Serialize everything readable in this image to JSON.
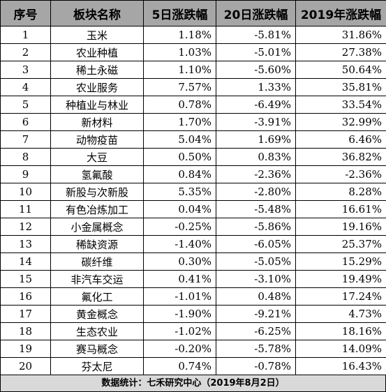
{
  "table": {
    "headers": [
      "序号",
      "板块名称",
      "5日涨跌幅",
      "20日涨跌幅",
      "2019年涨跌幅"
    ],
    "rows": [
      [
        "1",
        "玉米",
        "1.18%",
        "-5.81%",
        "31.86%"
      ],
      [
        "2",
        "农业种植",
        "1.03%",
        "-5.01%",
        "27.38%"
      ],
      [
        "3",
        "稀土永磁",
        "1.10%",
        "-5.60%",
        "50.64%"
      ],
      [
        "4",
        "农业服务",
        "7.57%",
        "1.33%",
        "35.81%"
      ],
      [
        "5",
        "种植业与林业",
        "0.78%",
        "-6.49%",
        "33.54%"
      ],
      [
        "6",
        "新材料",
        "1.70%",
        "-3.91%",
        "32.99%"
      ],
      [
        "7",
        "动物疫苗",
        "5.04%",
        "1.69%",
        "6.46%"
      ],
      [
        "8",
        "大豆",
        "0.50%",
        "0.83%",
        "36.82%"
      ],
      [
        "9",
        "氢氟酸",
        "0.84%",
        "-2.36%",
        "-2.36%"
      ],
      [
        "10",
        "新股与次新股",
        "5.35%",
        "-2.80%",
        "8.28%"
      ],
      [
        "11",
        "有色冶炼加工",
        "0.04%",
        "-5.48%",
        "16.61%"
      ],
      [
        "12",
        "小金属概念",
        "-0.25%",
        "-5.86%",
        "19.16%"
      ],
      [
        "13",
        "稀缺资源",
        "-1.40%",
        "-6.05%",
        "25.37%"
      ],
      [
        "14",
        "碳纤维",
        "0.30%",
        "-5.05%",
        "15.29%"
      ],
      [
        "15",
        "非汽车交运",
        "0.41%",
        "-3.10%",
        "19.49%"
      ],
      [
        "16",
        "氟化工",
        "-1.01%",
        "0.48%",
        "17.24%"
      ],
      [
        "17",
        "黄金概念",
        "-1.90%",
        "-9.21%",
        "4.73%"
      ],
      [
        "18",
        "生态农业",
        "-1.02%",
        "-6.25%",
        "18.16%"
      ],
      [
        "19",
        "赛马概念",
        "-0.20%",
        "-5.78%",
        "14.09%"
      ],
      [
        "20",
        "芬太尼",
        "0.74%",
        "-0.78%",
        "16.43%"
      ]
    ]
  },
  "footer": {
    "text": "数据统计：七禾研究中心（2019年8月2日）"
  },
  "colors": {
    "header_bg": "#a6a6a6",
    "footer_bg": "#d9d9d9",
    "border": "#000000"
  }
}
